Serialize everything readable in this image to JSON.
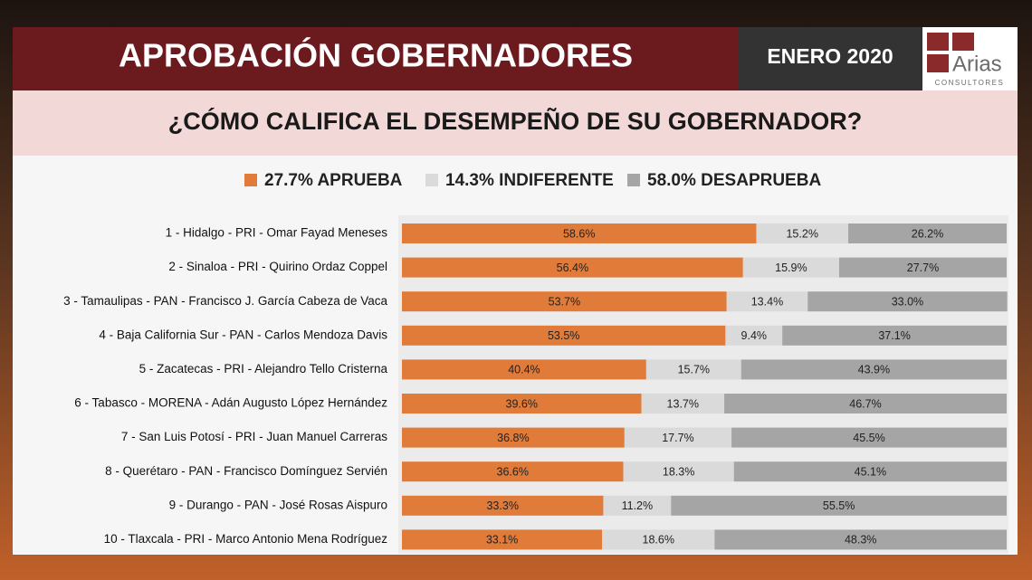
{
  "chart_data": {
    "type": "stacked-bar",
    "title": "APROBACIÓN GOBERNADORES",
    "date": "ENERO 2020",
    "logo": {
      "name": "Arias",
      "tagline": "CONSULTORES"
    },
    "subtitle": "¿CÓMO CALIFICA EL DESEMPEÑO DE SU GOBERNADOR?",
    "orientation": "horizontal",
    "xlim": [
      0,
      100
    ],
    "categories": [
      "1 - Hidalgo - PRI - Omar Fayad Meneses",
      "2 - Sinaloa - PRI - Quirino Ordaz Coppel",
      "3 - Tamaulipas - PAN - Francisco J. García Cabeza de Vaca",
      "4 - Baja California Sur - PAN - Carlos Mendoza Davis",
      "5 - Zacatecas - PRI - Alejandro Tello Cristerna",
      "6 - Tabasco - MORENA - Adán Augusto López Hernández",
      "7 - San Luis Potosí - PRI - Juan Manuel Carreras",
      "8 - Querétaro - PAN - Francisco Domínguez Servién",
      "9 - Durango - PAN - José Rosas Aispuro",
      "10 - Tlaxcala - PRI - Marco Antonio Mena Rodríguez"
    ],
    "series": [
      {
        "name": "27.7% APRUEBA",
        "color": "#e07b39",
        "values": [
          58.6,
          56.4,
          53.7,
          53.5,
          40.4,
          39.6,
          36.8,
          36.6,
          33.3,
          33.1
        ],
        "value_labels": [
          "58.6%",
          "56.4%",
          "53.7%",
          "53.5%",
          "40.4%",
          "39.6%",
          "36.8%",
          "36.6%",
          "33.3%",
          "33.1%"
        ]
      },
      {
        "name": "14.3% INDIFERENTE",
        "color": "#dadada",
        "values": [
          15.2,
          15.9,
          13.4,
          9.4,
          15.7,
          13.7,
          17.7,
          18.3,
          11.2,
          18.6
        ],
        "value_labels": [
          "15.2%",
          "15.9%",
          "13.4%",
          "9.4%",
          "15.7%",
          "13.7%",
          "17.7%",
          "18.3%",
          "11.2%",
          "18.6%"
        ]
      },
      {
        "name": "58.0% DESAPRUEBA",
        "color": "#a5a5a5",
        "values": [
          26.2,
          27.7,
          33.0,
          37.1,
          43.9,
          46.7,
          45.5,
          45.1,
          55.5,
          48.3
        ],
        "value_labels": [
          "26.2%",
          "27.7%",
          "33.0%",
          "37.1%",
          "43.9%",
          "46.7%",
          "45.5%",
          "45.1%",
          "55.5%",
          "48.3%"
        ]
      }
    ]
  }
}
